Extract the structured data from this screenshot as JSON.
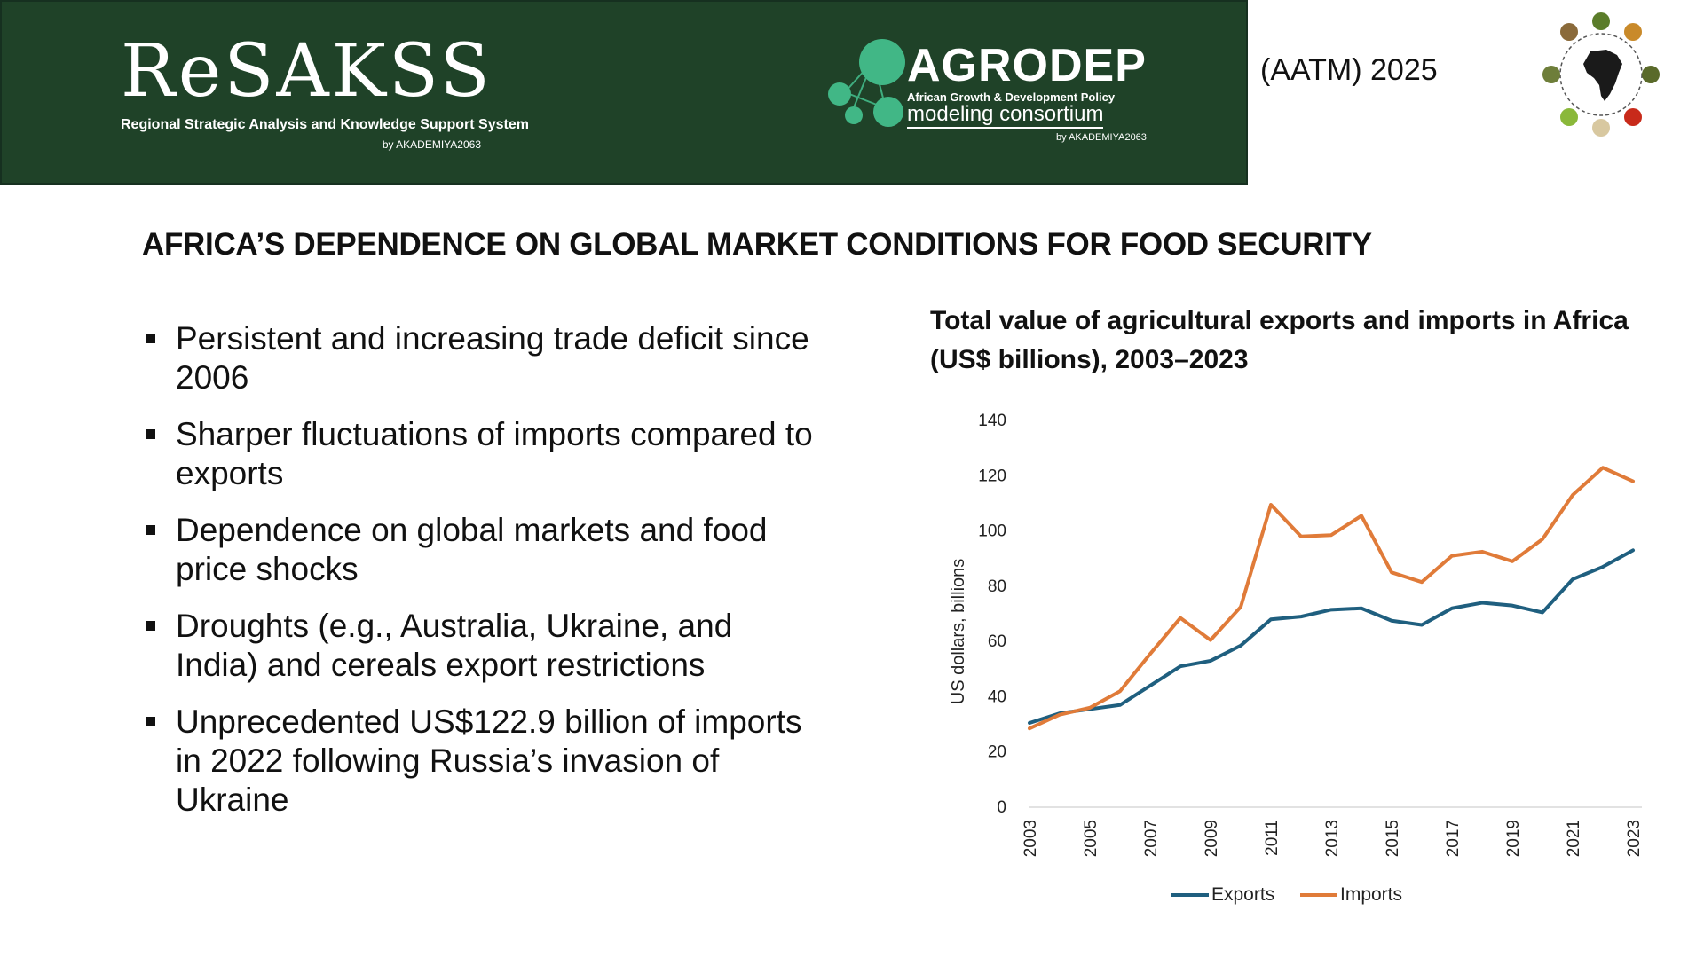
{
  "header": {
    "resakss": {
      "name": "ReSAKSS",
      "subtitle": "Regional Strategic Analysis and Knowledge Support System",
      "by": "by AKADEMIYA2063"
    },
    "agrodep": {
      "name": "AGRODEP",
      "tagline": "African Growth & Development Policy",
      "consortium": "modeling consortium",
      "by": "by AKADEMIYA2063"
    },
    "event": "(AATM) 2025",
    "emblem_icon": "africa-emblem-icon"
  },
  "slide": {
    "title": "AFRICA’S DEPENDENCE ON GLOBAL MARKET CONDITIONS FOR FOOD SECURITY",
    "bullets": [
      "Persistent and increasing trade deficit since 2006",
      "Sharper fluctuations of imports compared to exports",
      "Dependence on global markets and food price shocks",
      "Droughts (e.g., Australia, Ukraine, and India) and cereals export restrictions",
      "Unprecedented US$122.9 billion of imports in 2022 following Russia’s invasion of Ukraine"
    ]
  },
  "colors": {
    "banner": "#1f4228",
    "exports": "#1f5f7f",
    "imports": "#e07b39"
  },
  "chart_data": {
    "type": "line",
    "title": "Total value of agricultural exports and imports in Africa (US$ billions), 2003–2023",
    "xlabel": "",
    "ylabel": "US dollars, billions",
    "ylim": [
      0,
      140
    ],
    "yticks": [
      0,
      20,
      40,
      60,
      80,
      100,
      120,
      140
    ],
    "x": [
      2003,
      2004,
      2005,
      2006,
      2007,
      2008,
      2009,
      2010,
      2011,
      2012,
      2013,
      2014,
      2015,
      2016,
      2017,
      2018,
      2019,
      2020,
      2021,
      2022,
      2023
    ],
    "xtick_labels": [
      "2003",
      "2005",
      "2007",
      "2009",
      "2011",
      "2013",
      "2015",
      "2017",
      "2019",
      "2021",
      "2023"
    ],
    "series": [
      {
        "name": "Exports",
        "values": [
          30.5,
          34,
          35.5,
          37,
          44,
          51,
          53,
          58.5,
          68,
          69,
          71.5,
          72,
          67.5,
          66,
          72,
          74,
          73,
          70.5,
          82.5,
          87,
          93
        ]
      },
      {
        "name": "Imports",
        "values": [
          28.5,
          33.5,
          36,
          42,
          55.5,
          68.5,
          60.5,
          72.5,
          109.5,
          98,
          98.5,
          105.5,
          85,
          81.5,
          91,
          92.5,
          89,
          97,
          113,
          122.9,
          118
        ]
      }
    ],
    "legend": "bottom-center",
    "grid": false
  }
}
